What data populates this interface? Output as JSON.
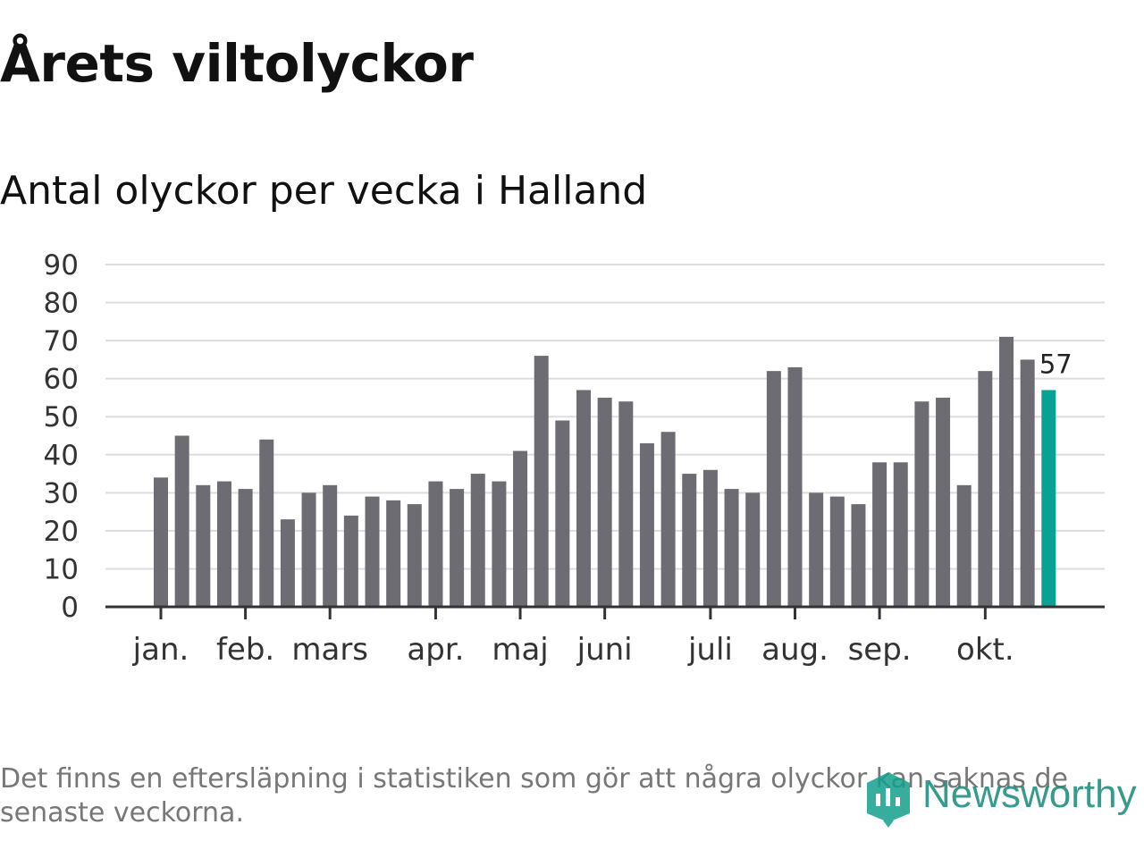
{
  "title": "Årets viltolyckor",
  "subtitle": "Antal olyckor per vecka i Halland",
  "footnote": "Det finns en eftersläpning i statistiken som gör att några olyckor kan saknas de senaste veckorna.",
  "brand": {
    "name": "Newsworthy",
    "color": "#139f8c",
    "icon": "newsworthy-logo-icon"
  },
  "colors": {
    "bar": "#6d6c72",
    "highlight": "#0aa195",
    "grid": "#dddddd",
    "axis": "#333333"
  },
  "chart_data": {
    "type": "bar",
    "title": "Antal olyckor per vecka i Halland",
    "xlabel": "",
    "ylabel": "",
    "ylim": [
      0,
      90
    ],
    "yticks": [
      "90",
      "80",
      "70",
      "60",
      "50",
      "40",
      "30",
      "20",
      "10",
      "0"
    ],
    "grid": true,
    "values": [
      34,
      45,
      32,
      33,
      31,
      44,
      23,
      30,
      32,
      24,
      29,
      28,
      27,
      33,
      31,
      35,
      33,
      41,
      66,
      49,
      57,
      55,
      54,
      43,
      46,
      35,
      36,
      31,
      30,
      62,
      63,
      30,
      29,
      27,
      38,
      38,
      54,
      55,
      32,
      62,
      71,
      65,
      57
    ],
    "month_labels": [
      {
        "label": "jan.",
        "bar_index": 0
      },
      {
        "label": "feb.",
        "bar_index": 4
      },
      {
        "label": "mars",
        "bar_index": 8
      },
      {
        "label": "apr.",
        "bar_index": 13
      },
      {
        "label": "maj",
        "bar_index": 17
      },
      {
        "label": "juni",
        "bar_index": 21
      },
      {
        "label": "juli",
        "bar_index": 26
      },
      {
        "label": "aug.",
        "bar_index": 30
      },
      {
        "label": "sep.",
        "bar_index": 34
      },
      {
        "label": "okt.",
        "bar_index": 39
      }
    ],
    "highlight_index": 42,
    "highlight_label": "57"
  }
}
